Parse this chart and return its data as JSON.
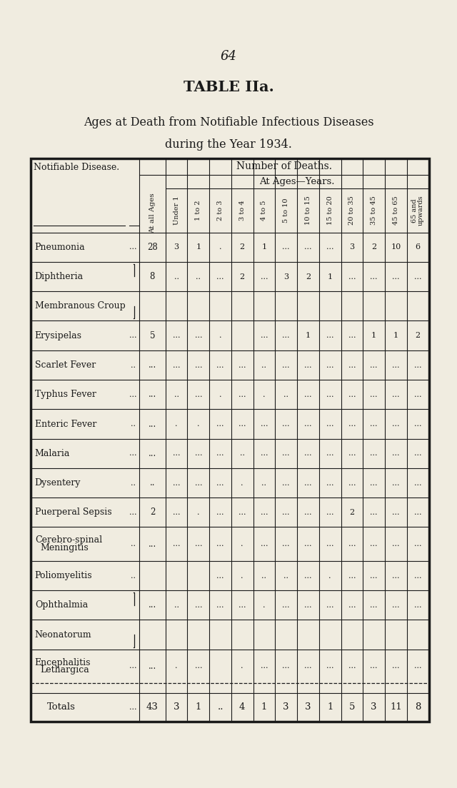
{
  "page_number": "64",
  "title_bold": "TABLE IIa.",
  "title_sub1": "Ages at Death from Notifiable Infectious Diseases",
  "title_sub2": "during the Year 1934.",
  "bg_color": "#f0ece0",
  "text_color": "#1a1a1a",
  "col_headers": [
    "At all Ages",
    "Under 1",
    "1 to 2",
    "2 to 3",
    "3 to 4",
    "4 to 5",
    "5 to 10",
    "10 to 15",
    "15 to 20",
    "20 to 35",
    "35 to 45",
    "45 to 65",
    "65 and\nupwards"
  ],
  "diseases": [
    [
      "Pneumonia",
      "..."
    ],
    [
      "Diphtheria",
      "|"
    ],
    [
      "Membranous Croup",
      "|"
    ],
    [
      "Erysipelas",
      "..."
    ],
    [
      "Scarlet Fever",
      ".."
    ],
    [
      "Typhus Fever",
      "..."
    ],
    [
      "Enteric Fever",
      ".."
    ],
    [
      "Malaria",
      "..."
    ],
    [
      "Dysentery",
      ".."
    ],
    [
      "Puerperal Sepsis",
      "..."
    ],
    [
      "Cerebro-spinal\nMeningitis",
      ".."
    ],
    [
      "Poliomyelitis",
      ".."
    ],
    [
      "Ophthalmia",
      "|"
    ],
    [
      "Neonatorum",
      "|"
    ],
    [
      "Encephalitis\nLethargica",
      "..."
    ]
  ],
  "data": [
    [
      "28",
      "3",
      "1",
      ".",
      "2",
      "1",
      "...",
      "...",
      "...",
      "3",
      "2",
      "10",
      "6"
    ],
    [
      "8",
      "..",
      "..",
      "...",
      "2",
      "...",
      "3",
      "2",
      "1",
      "...",
      "...",
      "...",
      "..."
    ],
    [
      "",
      "",
      "",
      "",
      "",
      "",
      "",
      "",
      "",
      "",
      "",
      "",
      ""
    ],
    [
      "5",
      "...",
      "...",
      ".",
      "",
      "...",
      "...",
      "1",
      "...",
      "...",
      "1",
      "1",
      "2"
    ],
    [
      "...",
      "...",
      "...",
      "...",
      "...",
      "..",
      "...",
      "...",
      "...",
      "...",
      "...",
      "...",
      "..."
    ],
    [
      "...",
      "..",
      "...",
      ".",
      "...",
      ".",
      "..",
      "...",
      "...",
      "...",
      "...",
      "...",
      "..."
    ],
    [
      "...",
      ".",
      ".",
      "...",
      "...",
      "...",
      "...",
      "...",
      "...",
      "...",
      "...",
      "...",
      "..."
    ],
    [
      "...",
      "...",
      "...",
      "...",
      "..",
      "...",
      "...",
      "...",
      "...",
      "...",
      "...",
      "...",
      "..."
    ],
    [
      "..",
      "...",
      "...",
      "...",
      ".",
      "..",
      "...",
      "...",
      "...",
      "...",
      "...",
      "...",
      "..."
    ],
    [
      "2",
      "...",
      ".",
      "...",
      "...",
      "...",
      "...",
      "...",
      "...",
      "2",
      "...",
      "...",
      "..."
    ],
    [
      "...",
      "...",
      "...",
      "...",
      ".",
      "...",
      "...",
      "...",
      "...",
      "...",
      "...",
      "...",
      "..."
    ],
    [
      "",
      "",
      "",
      "...",
      ".",
      "..",
      "..",
      "...",
      ".",
      "...",
      "...",
      "...",
      "..."
    ],
    [
      "...",
      "..",
      "...",
      "...",
      "...",
      ".",
      "...",
      "...",
      "...",
      "...",
      "...",
      "...",
      "..."
    ],
    [
      "",
      "",
      "",
      "",
      "",
      "",
      "",
      "",
      "",
      "",
      "",
      "",
      ""
    ],
    [
      "...",
      ".",
      "...",
      "",
      ".",
      "...",
      "...",
      "...",
      "...",
      "...",
      "...",
      "...",
      "..."
    ]
  ],
  "totals": [
    "43",
    "3",
    "1",
    "..",
    "4",
    "1",
    "3",
    "3",
    "1",
    "5",
    "3",
    "11",
    "8"
  ],
  "diphtheria_rows": [
    1,
    2
  ],
  "ophthalmia_rows": [
    12,
    13
  ]
}
